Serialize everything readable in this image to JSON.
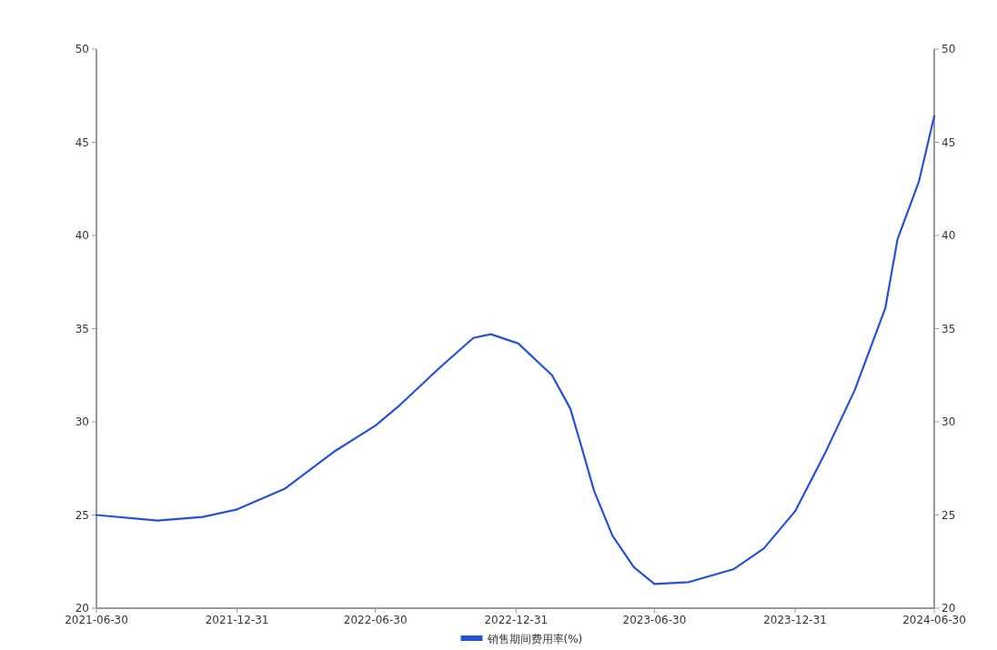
{
  "chart_data": {
    "type": "line",
    "x": [
      "2021-06-30",
      "2021-09-18",
      "2021-11-16",
      "2021-12-31",
      "2022-03-03",
      "2022-05-07",
      "2022-06-30",
      "2022-08-01",
      "2022-09-22",
      "2022-11-05",
      "2022-11-28",
      "2023-01-03",
      "2023-02-16",
      "2023-03-12",
      "2023-03-27",
      "2023-04-12",
      "2023-05-06",
      "2023-06-03",
      "2023-06-30",
      "2023-08-14",
      "2023-10-12",
      "2023-11-20",
      "2023-12-31",
      "2024-02-08",
      "2024-03-18",
      "2024-04-27",
      "2024-05-13",
      "2024-06-10",
      "2024-06-30"
    ],
    "series": [
      {
        "name": "销售期间费用率(%)",
        "color": "#2450e0",
        "values": [
          25.0,
          24.7,
          24.9,
          25.3,
          26.4,
          28.4,
          29.8,
          30.9,
          32.9,
          34.5,
          34.7,
          34.2,
          32.5,
          30.7,
          28.6,
          26.3,
          23.9,
          22.2,
          21.3,
          21.4,
          22.1,
          23.2,
          25.2,
          28.3,
          31.7,
          36.1,
          39.8,
          42.9,
          46.4
        ]
      }
    ],
    "xlim": [
      "2021-06-30",
      "2024-06-30"
    ],
    "xticks": [
      "2021-06-30",
      "2021-12-31",
      "2022-06-30",
      "2022-12-31",
      "2023-06-30",
      "2023-12-31",
      "2024-06-30"
    ],
    "ylim": [
      20,
      50
    ],
    "yticks": [
      20,
      25,
      30,
      35,
      40,
      45,
      50
    ],
    "y2lim": [
      20,
      50
    ],
    "y2ticks": [
      20,
      25,
      30,
      35,
      40,
      45,
      50
    ],
    "legend": "bottom",
    "marker": "none",
    "line_style": "solid"
  }
}
